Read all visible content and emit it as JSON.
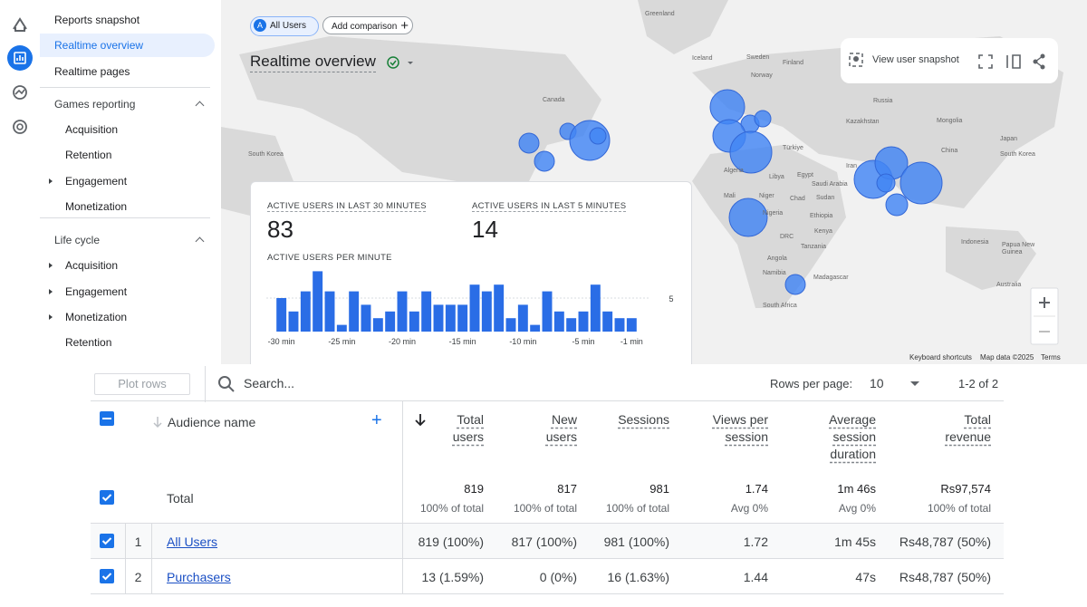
{
  "nav": {
    "top_items": [
      "Reports snapshot",
      "Realtime overview",
      "Realtime pages"
    ],
    "sections": [
      {
        "title": "Games reporting",
        "items": [
          {
            "label": "Acquisition",
            "expandable": false
          },
          {
            "label": "Retention",
            "expandable": false
          },
          {
            "label": "Engagement",
            "expandable": true
          },
          {
            "label": "Monetization",
            "expandable": false
          }
        ]
      },
      {
        "title": "Life cycle",
        "items": [
          {
            "label": "Acquisition",
            "expandable": true
          },
          {
            "label": "Engagement",
            "expandable": true
          },
          {
            "label": "Monetization",
            "expandable": true
          },
          {
            "label": "Retention",
            "expandable": false
          }
        ]
      }
    ]
  },
  "header": {
    "segment_badge": "A",
    "segment": "All Users",
    "add_comparison": "Add comparison",
    "title": "Realtime overview",
    "view_user_snapshot": "View user snapshot"
  },
  "map": {
    "labels": [
      "Greenland",
      "Iceland",
      "Sweden",
      "Norway",
      "Finland",
      "Canada",
      "Russia",
      "Kazakhstan",
      "Mongolia",
      "China",
      "Japan",
      "South Korea",
      "South Korea",
      "Türkiye",
      "Iran",
      "Saudi Arabia",
      "Libya",
      "Egypt",
      "Algeria",
      "Mali",
      "Niger",
      "Chad",
      "Sudan",
      "Nigeria",
      "Ethiopia",
      "DRC",
      "Kenya",
      "Tanzania",
      "Angola",
      "Namibia",
      "Madagascar",
      "South Africa",
      "Indonesia",
      "Papua New Guinea",
      "Australia"
    ],
    "footer": [
      "Keyboard shortcuts",
      "Map data ©2025",
      "Terms"
    ]
  },
  "realtime_card": {
    "metrics": [
      {
        "label": "ACTIVE USERS IN LAST 30 MINUTES",
        "value": 83
      },
      {
        "label": "ACTIVE USERS IN LAST 5 MINUTES",
        "value": 14
      }
    ]
  },
  "chart_data": {
    "type": "bar",
    "title": "ACTIVE USERS PER MINUTE",
    "x": [
      -30,
      -29,
      -28,
      -27,
      -26,
      -25,
      -24,
      -23,
      -22,
      -21,
      -20,
      -19,
      -18,
      -17,
      -16,
      -15,
      -14,
      -13,
      -12,
      -11,
      -10,
      -9,
      -8,
      -7,
      -6,
      -5,
      -4,
      -3,
      -2,
      -1
    ],
    "values": [
      5,
      3,
      6,
      9,
      6,
      1,
      6,
      4,
      2,
      3,
      6,
      3,
      6,
      4,
      4,
      4,
      7,
      6,
      7,
      2,
      4,
      1,
      6,
      3,
      2,
      3,
      7,
      3,
      2,
      2
    ],
    "color": "#2a6de6",
    "xlim": [
      -30.5,
      -0.5
    ],
    "xticks": [
      {
        "value": -30,
        "label": "-30 min"
      },
      {
        "value": -25,
        "label": "-25 min"
      },
      {
        "value": -20,
        "label": "-20 min"
      },
      {
        "value": -15,
        "label": "-15 min"
      },
      {
        "value": -10,
        "label": "-10 min"
      },
      {
        "value": -5,
        "label": "-5 min"
      },
      {
        "value": -1,
        "label": "-1 min"
      }
    ],
    "ylim": [
      0,
      10
    ],
    "yticks": [
      5
    ],
    "grid": true
  },
  "table": {
    "plot_rows": "Plot rows",
    "search_placeholder": "Search...",
    "rows_per_page_label": "Rows per page:",
    "rows_per_page": 10,
    "pagination": "1-2 of 2",
    "dimension_header": "Audience name",
    "columns": [
      "Total users",
      "New users",
      "Sessions",
      "Views per session",
      "Average session duration",
      "Total revenue"
    ],
    "total": {
      "label": "Total",
      "cells": [
        {
          "value": "819",
          "sub": "100% of total"
        },
        {
          "value": "817",
          "sub": "100% of total"
        },
        {
          "value": "981",
          "sub": "100% of total"
        },
        {
          "value": "1.74",
          "sub": "Avg 0%"
        },
        {
          "value": "1m 46s",
          "sub": "Avg 0%"
        },
        {
          "value": "Rs97,574",
          "sub": "100% of total"
        }
      ]
    },
    "rows": [
      {
        "index": 1,
        "name": "All Users",
        "cells": [
          "819 (100%)",
          "817 (100%)",
          "981 (100%)",
          "1.72",
          "1m 45s",
          "Rs48,787 (50%)"
        ]
      },
      {
        "index": 2,
        "name": "Purchasers",
        "cells": [
          "13 (1.59%)",
          "0 (0%)",
          "16 (1.63%)",
          "1.44",
          "47s",
          "Rs48,787 (50%)"
        ]
      }
    ]
  }
}
